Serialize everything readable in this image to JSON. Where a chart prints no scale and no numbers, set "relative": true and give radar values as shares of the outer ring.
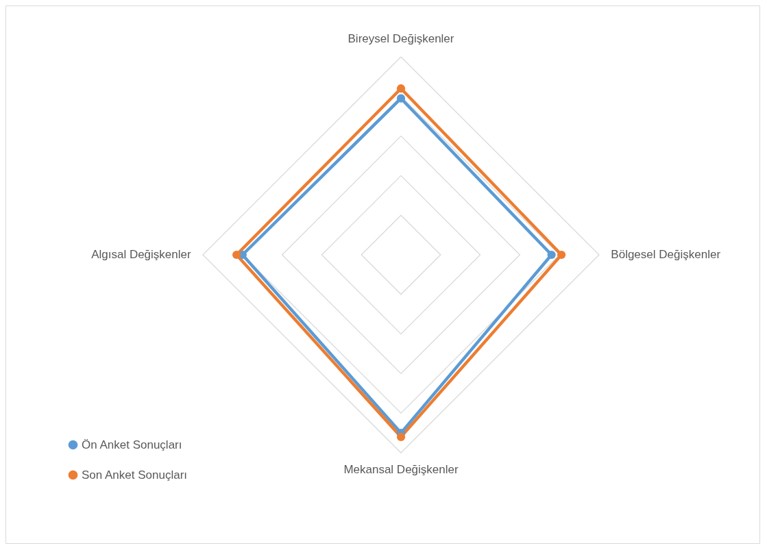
{
  "chart_data": {
    "type": "radar",
    "relative": true,
    "grid": true,
    "legend": "bottom left",
    "marker": "circle",
    "line_style": "solid",
    "categories": [
      "Bireysel Değişkenler",
      "Bölgesel Değişkenler",
      "Mekansal Değişkenler",
      "Algısal Değişkenler"
    ],
    "series": [
      {
        "name": "Ön Anket Sonuçları",
        "color": "#5b9bd5",
        "values": [
          0.79,
          0.76,
          0.9,
          0.8
        ]
      },
      {
        "name": "Son Anket Sonuçları",
        "color": "#ed7d31",
        "values": [
          0.84,
          0.81,
          0.92,
          0.83
        ]
      }
    ]
  }
}
